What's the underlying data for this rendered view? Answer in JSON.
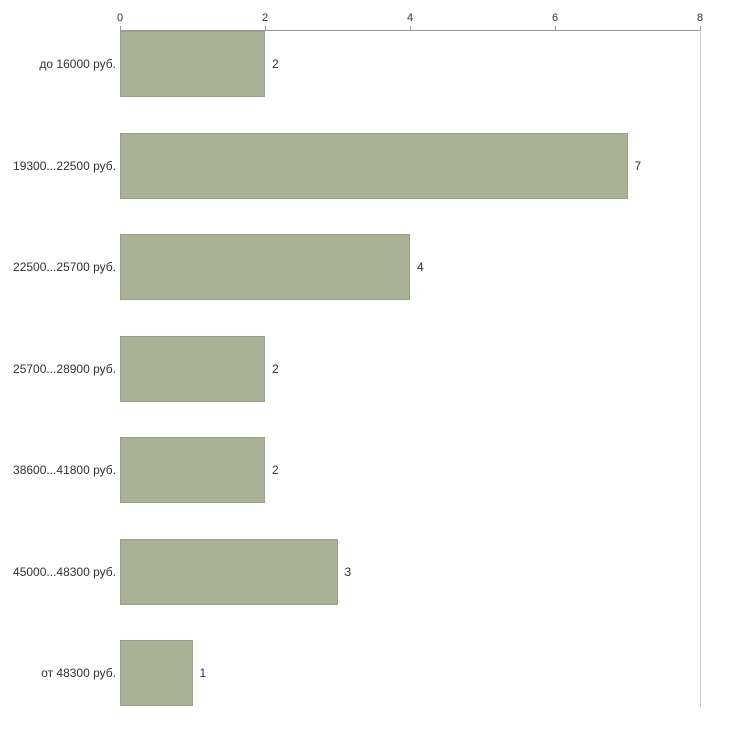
{
  "chart_data": {
    "type": "bar",
    "orientation": "horizontal",
    "title": "",
    "xlabel": "",
    "ylabel": "",
    "categories": [
      "до 16000 руб.",
      "19300...22500 руб.",
      "22500...25700 руб.",
      "25700...28900 руб.",
      "38600...41800 руб.",
      "45000...48300 руб.",
      "от 48300 руб."
    ],
    "values": [
      2,
      7,
      4,
      2,
      2,
      3,
      1
    ],
    "x_ticks": [
      0,
      2,
      4,
      6,
      8
    ],
    "xlim": [
      0,
      8
    ],
    "grid": false,
    "legend": null,
    "axis_position": "top",
    "value_labels_shown": true,
    "colors": {
      "bar_fill": "#a9b197",
      "bar_border": "#99a186",
      "axis_line": "#999999",
      "frame_line": "#cccccc",
      "text": "#333333",
      "background": "#ffffff"
    }
  }
}
